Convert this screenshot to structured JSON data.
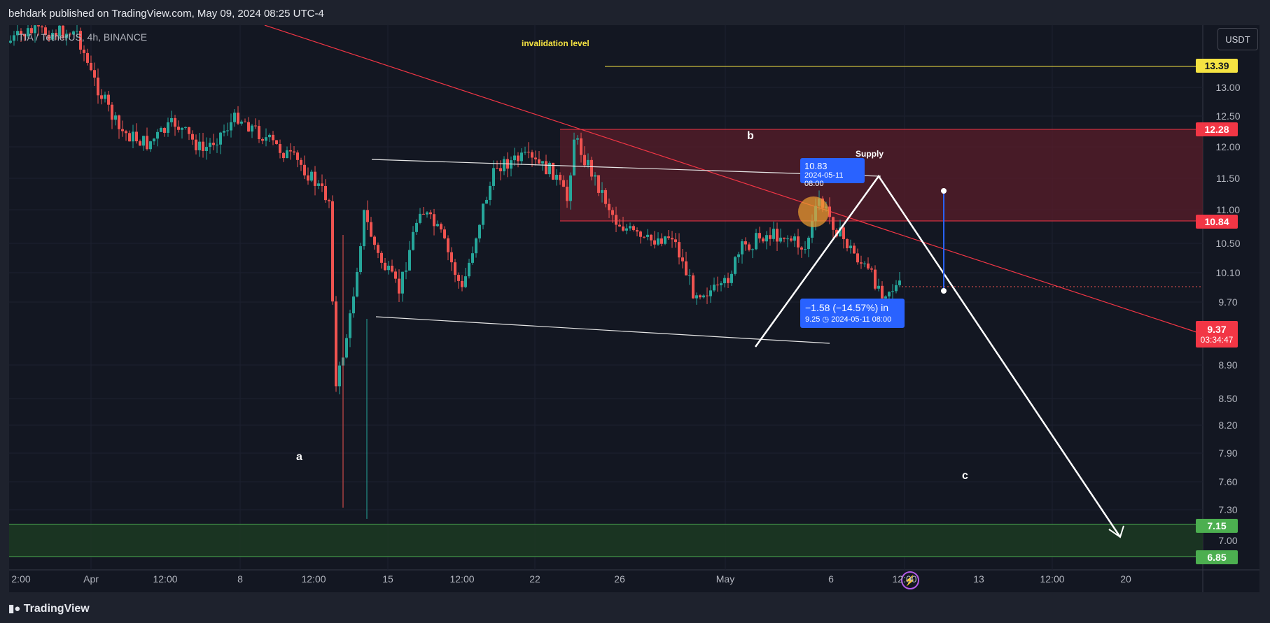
{
  "header": {
    "publisher_line": "behdark published on TradingView.com, May 09, 2024 08:25 UTC-4"
  },
  "chart": {
    "symbol_line": "TIA / TetherUS, 4h, BINANCE",
    "currency_button": "USDT",
    "y_ticks": [
      "13.00",
      "12.50",
      "12.00",
      "11.50",
      "11.00",
      "10.50",
      "10.10",
      "9.70",
      "8.90",
      "8.50",
      "8.20",
      "7.90",
      "7.60",
      "7.30",
      "7.00"
    ],
    "x_ticks": [
      "2:00",
      "Apr",
      "12:00",
      "8",
      "12:00",
      "15",
      "12:00",
      "22",
      "26",
      "May",
      "6",
      "12:00",
      "13",
      "12:00",
      "20"
    ],
    "price_tags": {
      "invalidation": "13.39",
      "supply_top": "12.28",
      "supply_bottom": "10.84",
      "current_price": "9.37",
      "countdown": "03:34:47",
      "demand_top": "7.15",
      "demand_bottom": "6.85"
    },
    "annotations": {
      "invalidation_text": "invalidation level",
      "supply_text": "Supply",
      "wave_a": "a",
      "wave_b": "b",
      "wave_c": "c"
    },
    "measure": {
      "top_value": "10.83",
      "top_date": "2024-05-11 08:00",
      "change": "−1.58 (−14.57%) in",
      "bottom_value": "9.25",
      "bottom_date": "2024-05-11  08:00"
    },
    "colors": {
      "bull": "#26a69a",
      "bear": "#ef5350",
      "supply_zone": "#5a1e2a",
      "demand_zone": "#1c3a22",
      "invalidation_line": "#f5e342",
      "trendline": "#f23645",
      "measure": "#2962ff"
    },
    "icons": [
      "lightning-icon",
      "clock-icon",
      "tradingview-logo-icon"
    ]
  },
  "footer": {
    "brand": "TradingView"
  }
}
